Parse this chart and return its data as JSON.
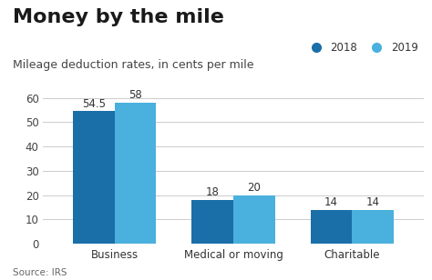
{
  "title": "Money by the mile",
  "subtitle": "Mileage deduction rates, in cents per mile",
  "source": "Source: IRS",
  "categories": [
    "Business",
    "Medical or moving",
    "Charitable"
  ],
  "values_2018": [
    54.5,
    18,
    14
  ],
  "values_2019": [
    58,
    20,
    14
  ],
  "color_2018": "#1a6fa8",
  "color_2019": "#4ab0de",
  "ylim": [
    0,
    60
  ],
  "yticks": [
    0,
    10,
    20,
    30,
    40,
    50,
    60
  ],
  "legend_labels": [
    "2018",
    "2019"
  ],
  "bar_width": 0.35,
  "background_color": "#ffffff",
  "title_fontsize": 16,
  "subtitle_fontsize": 9,
  "source_fontsize": 7.5,
  "label_fontsize": 8.5,
  "tick_fontsize": 8.5
}
